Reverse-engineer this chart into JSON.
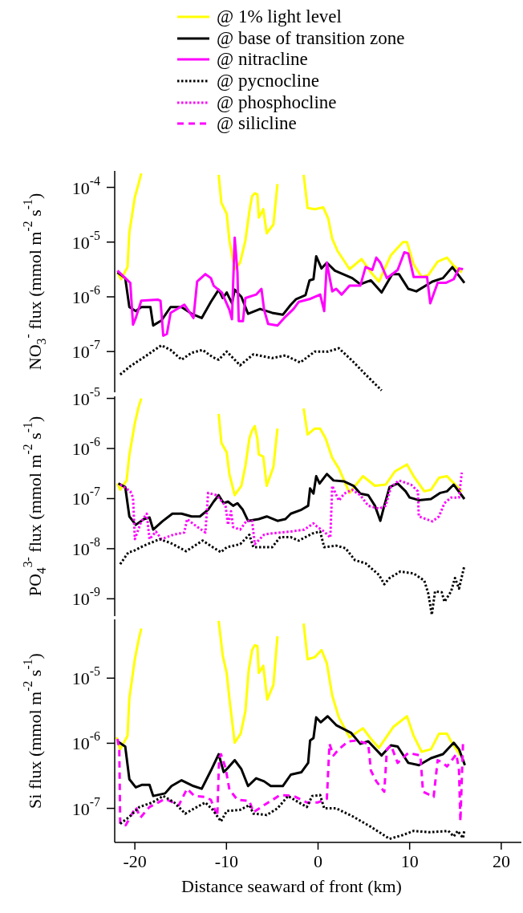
{
  "chart_data": [
    {
      "type": "line",
      "log": true,
      "legend": "top",
      "tick_labels": "y",
      "ylabel": "NO$_{3}$$^{-}$ flux (mmol m$^{-2}$ s$^{-1}$)",
      "xlim": [
        -22.2,
        22.2
      ],
      "ylim": [
        1.8e-08,
        0.0002
      ],
      "yticks": [
        {
          "value": 0.0001,
          "label": "10$^{-4}$"
        },
        {
          "value": 1e-05,
          "label": "10$^{-5}$"
        },
        {
          "value": 1e-06,
          "label": "10$^{-6}$"
        },
        {
          "value": 1e-07,
          "label": "10$^{-7}$"
        }
      ],
      "series": [
        {
          "name": "@ 1% light level",
          "color": "#ffff00",
          "line_style": "solid",
          "x": [
            -21.9,
            -21.5,
            -20.8,
            -20.6,
            -20.0,
            -19.6,
            -19.3,
            -15,
            -10.85,
            -10.55,
            -9.97,
            -9.68,
            -9.1,
            -8.51,
            -7.93,
            -7.49,
            -7.2,
            -6.91,
            -6.62,
            -6.47,
            -5.98,
            -5.6,
            -4.87,
            -4.43,
            -3,
            -1.57,
            -1.14,
            -0.35,
            0.58,
            1.11,
            1.55,
            2.13,
            3.44,
            4.75,
            5.77,
            6.65,
            7.96,
            9.27,
            9.71,
            10.44,
            11.31,
            12.04,
            13.06,
            14.08,
            14.81,
            15.69
          ],
          "values": [
            2.8e-06,
            2.1e-06,
            3.5e-06,
            1.5e-05,
            6.6e-05,
            0.000115,
            0.00018,
            null,
            0.00017,
            5.2e-05,
            3.3e-05,
            1.07e-05,
            3.2e-06,
            4.2e-06,
            1.07e-05,
            3.7e-05,
            6.9e-05,
            7.8e-05,
            7.4e-05,
            2.8e-05,
            4e-05,
            1.45e-05,
            2.1e-05,
            0.000115,
            null,
            0.00017,
            4.2e-05,
            4e-05,
            4.3e-05,
            2.7e-05,
            1.15e-05,
            6.9e-06,
            3.2e-06,
            4.9e-06,
            2.8e-06,
            1.9e-06,
            5.8e-06,
            1e-05,
            1e-05,
            3.9e-06,
            2.3e-06,
            2.5e-06,
            4.4e-06,
            5.2e-06,
            3.7e-06,
            2.8e-06
          ]
        },
        {
          "name": "@ base of transition zone",
          "color": "#000000",
          "line_style": "solid",
          "x": [
            -21.9,
            -21.05,
            -20.6,
            -19.9,
            -19.3,
            -18.3,
            -18.0,
            -17.1,
            -16.1,
            -14.9,
            -13.8,
            -12.7,
            -11.7,
            -10.85,
            -10.4,
            -9.97,
            -9.39,
            -9.1,
            -8.37,
            -7.64,
            -6.33,
            -5.01,
            -3.85,
            -2.97,
            -2.39,
            -1.37,
            -0.93,
            -0.5,
            -0.2,
            0.38,
            0.96,
            1.84,
            3.73,
            4.61,
            5.77,
            6.94,
            8.1,
            8.83,
            9.85,
            10.73,
            12.48,
            13.64,
            14.66,
            15.98
          ],
          "values": [
            2.8e-06,
            2.2e-06,
            6.5e-07,
            5.5e-07,
            6.5e-07,
            6.5e-07,
            3e-07,
            3.7e-07,
            6.5e-07,
            6.5e-07,
            4.9e-07,
            4.1e-07,
            8.1e-07,
            1.35e-06,
            9.5e-07,
            1.2e-06,
            7.6e-07,
            1.35e-06,
            1e-06,
            4.9e-07,
            6e-07,
            5.1e-07,
            4.7e-07,
            7.2e-07,
            9.1e-07,
            1.07e-06,
            2e-06,
            2.1e-06,
            5.5e-06,
            3.3e-06,
            4.2e-06,
            3e-06,
            2.2e-06,
            1.7e-06,
            2e-06,
            1.2e-06,
            2.6e-06,
            2.6e-06,
            1.4e-06,
            1.26e-06,
            1.9e-06,
            2.2e-06,
            3.5e-06,
            1.8e-06
          ]
        },
        {
          "name": "@ nitracline",
          "color": "#ff00ff",
          "line_style": "solid",
          "x": [
            -21.9,
            -20.5,
            -20.2,
            -19.9,
            -19.3,
            -17.5,
            -17.2,
            -16.9,
            -16.5,
            -16.1,
            -14.6,
            -13.6,
            -13.2,
            -12.3,
            -11.7,
            -11.4,
            -10.5,
            -9.68,
            -9.4,
            -9.1,
            -8.8,
            -8.66,
            -8.2,
            -7.93,
            -6.76,
            -6.18,
            -5.89,
            -5.45,
            -4.43,
            -3.7,
            -2.68,
            -2.1,
            -0.93,
            0.23,
            0.67,
            0.96,
            1.55,
            1.98,
            2.57,
            3.44,
            4.61,
            5.19,
            5.92,
            6.36,
            6.8,
            7.52,
            8.69,
            9.42,
            9.85,
            10.44,
            11.9,
            12.25,
            13.06,
            13.94,
            14.81,
            15.39,
            15.83
          ],
          "values": [
            3e-06,
            1.8e-06,
            3.1e-07,
            4.1e-07,
            8.5e-07,
            8.9e-07,
            8.5e-07,
            1.95e-07,
            2.1e-07,
            5.1e-07,
            7.2e-07,
            4.1e-07,
            1.9e-06,
            2.6e-06,
            2.2e-06,
            1.6e-06,
            1.2e-06,
            5.8e-07,
            3.9e-07,
            1.2e-05,
            2.8e-06,
            3.6e-07,
            3.6e-07,
            9.5e-07,
            1.1e-06,
            1.4e-06,
            5.8e-07,
            3.2e-07,
            3e-07,
            4.1e-07,
            6e-07,
            8.1e-07,
            9.1e-07,
            1.1e-06,
            5.5e-07,
            4.2e-06,
            1.26e-06,
            1.4e-06,
            1.1e-06,
            1.6e-06,
            1.6e-06,
            3.5e-06,
            3.1e-06,
            5.2e-06,
            4.2e-06,
            2.2e-06,
            3.1e-06,
            6.5e-06,
            6.2e-06,
            2.3e-06,
            2.3e-06,
            7.6e-07,
            1.8e-06,
            1.8e-06,
            2.1e-06,
            3.3e-06,
            3.2e-06
          ]
        },
        {
          "name": "@ pycnocline",
          "color": "#000000",
          "line_style": "dotted",
          "x": [
            -21.6,
            -20.5,
            -19.0,
            -17.1,
            -16.1,
            -14.9,
            -13.8,
            -12.6,
            -11.5,
            -10.85,
            -9.97,
            -8.51,
            -7.06,
            -5.01,
            -3.56,
            -1.95,
            -0.35,
            1.11,
            2.27,
            3.73,
            5.19,
            6.94
          ],
          "values": [
            3.8e-08,
            5.4e-08,
            7.9e-08,
            1.3e-07,
            1.07e-07,
            7.1e-08,
            9.5e-08,
            1.07e-07,
            7.9e-08,
            7.1e-08,
            1e-07,
            5.6e-08,
            8.9e-08,
            7.6e-08,
            8.5e-08,
            6.3e-08,
            1e-07,
            1e-07,
            1.15e-07,
            6.8e-08,
            3.8e-08,
            1.95e-08
          ]
        }
      ]
    },
    {
      "type": "line",
      "log": true,
      "legend": "top",
      "tick_labels": "y",
      "ylabel": "PO$_{4}$$^{3-}$ flux (mmol m$^{-2}$ s$^{-1}$)",
      "xlim": [
        -22.2,
        22.2
      ],
      "ylim": [
        4.5e-10,
        1.1e-05
      ],
      "yticks": [
        {
          "value": 1e-05,
          "label": "10$^{-5}$"
        },
        {
          "value": 1e-06,
          "label": "10$^{-6}$"
        },
        {
          "value": 1e-07,
          "label": "10$^{-7}$"
        },
        {
          "value": 1e-08,
          "label": "10$^{-8}$"
        },
        {
          "value": 1e-09,
          "label": "10$^{-9}$"
        }
      ],
      "series": [
        {
          "name": "@ 1% light level",
          "color": "#ffff00",
          "line_style": "solid",
          "x": [
            -21.9,
            -21.6,
            -20.9,
            -20.6,
            -20.0,
            -19.6,
            -19.3,
            -15,
            -10.85,
            -10.55,
            -9.97,
            -9.68,
            -9.1,
            -8.37,
            -7.93,
            -7.49,
            -7.2,
            -6.91,
            -6.62,
            -6.47,
            -5.98,
            -5.6,
            -4.87,
            -4.43,
            -3,
            -1.57,
            -1.14,
            -0.35,
            0.23,
            0.82,
            1.55,
            2.27,
            3.44,
            4.9,
            6.21,
            7.38,
            8.4,
            9.71,
            10.44,
            11.6,
            12.33,
            13.2,
            14.08,
            14.52,
            15.69
          ],
          "values": [
            2e-07,
            1.5e-07,
            2.3e-07,
            7.4e-07,
            3.2e-06,
            6.6e-06,
            1e-05,
            null,
            4.9e-06,
            1.3e-06,
            8.3e-07,
            3.1e-07,
            1.17e-07,
            1.8e-07,
            4.5e-07,
            1.6e-06,
            2.3e-06,
            2.8e-06,
            1.55e-06,
            7.6e-07,
            6.9e-07,
            1.8e-07,
            4.3e-07,
            2.5e-06,
            null,
            6.3e-06,
            1.9e-06,
            2.5e-06,
            2.5e-06,
            1.6e-06,
            6.5e-07,
            4e-07,
            1.3e-07,
            2.8e-07,
            1.8e-07,
            1.9e-07,
            3.5e-07,
            4.8e-07,
            2.8e-07,
            1.4e-07,
            1.5e-07,
            2.6e-07,
            2.8e-07,
            2.3e-07,
            1.4e-07
          ]
        },
        {
          "name": "@ base of transition zone",
          "color": "#000000",
          "line_style": "solid",
          "x": [
            -21.8,
            -21.05,
            -20.6,
            -19.9,
            -19.0,
            -18.4,
            -18.0,
            -17.0,
            -15.9,
            -14.9,
            -13.8,
            -12.9,
            -12.0,
            -11.4,
            -10.85,
            -10.3,
            -9.83,
            -9.27,
            -8.8,
            -8.22,
            -7.64,
            -6.47,
            -5.6,
            -4.43,
            -3.56,
            -2.97,
            -1.81,
            -1.08,
            -0.87,
            -0.5,
            -0.2,
            0.17,
            0.96,
            1.69,
            2.86,
            3.88,
            4.61,
            5.48,
            6.21,
            6.8,
            7.23,
            7.81,
            8.69,
            9.56,
            10.0,
            11.0,
            12.33,
            13.35,
            14.08,
            14.81,
            15.98
          ],
          "values": [
            2e-07,
            1.7e-07,
            4.4e-08,
            3e-08,
            3.9e-08,
            4.2e-08,
            2.4e-08,
            3.5e-08,
            5e-08,
            5e-08,
            4.4e-08,
            4.4e-08,
            6e-08,
            8.7e-08,
            1.17e-07,
            8.1e-08,
            8.7e-08,
            7.2e-08,
            8.1e-08,
            6e-08,
            3.6e-08,
            3.9e-08,
            4.4e-08,
            3.6e-08,
            3.9e-08,
            5e-08,
            6e-08,
            7.2e-08,
            1.6e-07,
            1.26e-07,
            2.8e-07,
            2e-07,
            3.1e-07,
            2.3e-07,
            2.2e-07,
            1.8e-07,
            1.26e-07,
            1.17e-07,
            7.2e-08,
            3.6e-08,
            7.2e-08,
            1.7e-07,
            2e-07,
            1.4e-07,
            1.05e-07,
            9.3e-08,
            9.8e-08,
            1.3e-07,
            1.4e-07,
            1.9e-07,
            9.8e-08
          ]
        },
        {
          "name": "@ phosphocline",
          "color": "#ff00ff",
          "line_style": "dotted",
          "x": [
            -21.6,
            -20.5,
            -20.2,
            -20.0,
            -19.3,
            -18.7,
            -18.4,
            -17.7,
            -17.1,
            -15.8,
            -14.6,
            -14.3,
            -13.5,
            -12.3,
            -12.0,
            -11.1,
            -10.1,
            -9.83,
            -9.5,
            -9.27,
            -8.5,
            -7.8,
            -7.2,
            -6.91,
            -5.89,
            -5.3,
            -2.97,
            -1.51,
            -0.5,
            -0.06,
            0.67,
            1.34,
            1.55,
            2.27,
            2.86,
            3.73,
            4.61,
            5.48,
            6.65,
            7.38,
            7.96,
            8.83,
            10.15,
            10.9,
            11.0,
            12.5,
            13.2,
            13.8,
            14.52,
            15.39,
            15.69
          ],
          "values": [
            1.9e-07,
            1.4e-07,
            1.05e-07,
            1.55e-08,
            3.5e-08,
            5e-08,
            1.55e-08,
            2.2e-08,
            1.55e-08,
            1.9e-08,
            2.1e-08,
            3.9e-08,
            3e-08,
            2.1e-08,
            1.3e-07,
            1.17e-07,
            7.2e-08,
            3e-08,
            5.6e-08,
            2.7e-08,
            2.4e-08,
            3.6e-08,
            3.6e-08,
            1.23e-08,
            1.9e-08,
            2e-08,
            2.2e-08,
            2.4e-08,
            3.2e-08,
            2.7e-08,
            2.2e-08,
            1.66e-08,
            1.8e-07,
            9.1e-08,
            1.26e-07,
            1.5e-07,
            1.17e-07,
            7.2e-08,
            6.3e-08,
            7.2e-08,
            1.7e-07,
            2.3e-07,
            1.9e-07,
            1.4e-07,
            4.4e-08,
            3.5e-08,
            4.4e-08,
            8.1e-08,
            1.05e-07,
            1.05e-07,
            3.3e-07
          ]
        },
        {
          "name": "@ pycnocline",
          "color": "#000000",
          "line_style": "dotted",
          "x": [
            -21.6,
            -20.7,
            -20.2,
            -19.0,
            -17.3,
            -16.1,
            -14.4,
            -12.6,
            -11.5,
            -10.6,
            -9.97,
            -8.5,
            -7.5,
            -7.06,
            -5.89,
            -5.01,
            -4.14,
            -2.97,
            -2.1,
            -0.64,
            0.23,
            0.67,
            1.98,
            3.0,
            4.03,
            5.19,
            6.65,
            7.23,
            7.81,
            8.98,
            10.44,
            11.6,
            12.04,
            12.42,
            12.77,
            13.5,
            13.8,
            14.52,
            14.95,
            15.39,
            15.98
          ],
          "values": [
            4.9e-09,
            8.5e-09,
            8.9e-09,
            1.15e-08,
            1.55e-08,
            1.3e-08,
            8.9e-09,
            1.45e-08,
            1.07e-08,
            8.5e-09,
            1.07e-08,
            1.23e-08,
            1.9e-08,
            1.07e-08,
            1.07e-08,
            1.07e-08,
            1.7e-08,
            1.7e-08,
            1.45e-08,
            2e-08,
            2.2e-08,
            1.07e-08,
            1.15e-08,
            1.02e-08,
            5.9e-09,
            5.1e-09,
            3e-09,
            1.95e-09,
            2.6e-09,
            3.5e-09,
            3.2e-09,
            2.3e-09,
            1.26e-09,
            4.8e-10,
            1.4e-09,
            1.35e-09,
            8.7e-10,
            1.4e-09,
            2.6e-09,
            1.6e-09,
            4.6e-09
          ]
        }
      ]
    },
    {
      "type": "line",
      "log": true,
      "legend": "top",
      "ylabel": "Si flux (mmol m$^{-2}$ s$^{-1}$)",
      "xlabel": "Distance seaward of front (km)",
      "xlim": [
        -22.2,
        22.2
      ],
      "xticks": [
        -20,
        -10,
        0,
        10,
        20
      ],
      "ylim": [
        3e-08,
        8e-05
      ],
      "yticks": [
        {
          "value": 1e-05,
          "label": "10$^{-5}$"
        },
        {
          "value": 1e-06,
          "label": "10$^{-6}$"
        },
        {
          "value": 1e-07,
          "label": "10$^{-7}$"
        }
      ],
      "series": [
        {
          "name": "@ 1% light level",
          "color": "#ffff00",
          "line_style": "solid",
          "x": [
            -22.0,
            -21.6,
            -20.8,
            -20.6,
            -20.0,
            -19.6,
            -19.3,
            -15,
            -10.85,
            -10.4,
            -9.97,
            -9.68,
            -9.1,
            -8.45,
            -7.93,
            -7.58,
            -7.2,
            -6.91,
            -6.62,
            -6.47,
            -5.98,
            -5.54,
            -4.87,
            -4.43,
            -3,
            -1.57,
            -1.14,
            -0.35,
            0.38,
            0.96,
            1.55,
            2.27,
            3.44,
            4.9,
            5.77,
            6.65,
            8.25,
            9.71,
            10.44,
            11.31,
            12.33,
            13.2,
            14.08,
            14.52,
            15.54
          ],
          "values": [
            1.23e-06,
            8.1e-07,
            1.3e-06,
            4.9e-06,
            1.95e-05,
            3.8e-05,
            5.8e-05,
            null,
            7.6e-05,
            2.2e-05,
            1.2e-05,
            4.9e-06,
            1.02e-06,
            1.4e-06,
            3.1e-06,
            1.3e-05,
            2.7e-05,
            3.2e-05,
            3.1e-05,
            1.2e-05,
            1.55e-05,
            4.7e-06,
            7.9e-06,
            4.4e-05,
            null,
            6.9e-05,
            1.95e-05,
            2.1e-05,
            2.7e-05,
            1.7e-05,
            5.4e-06,
            2.5e-06,
            1.23e-06,
            1.7e-06,
            1.17e-06,
            8.5e-07,
            1.8e-06,
            2.6e-06,
            1.3e-06,
            7.4e-07,
            8.1e-07,
            1.4e-06,
            1.4e-06,
            1.07e-06,
            6.5e-07
          ]
        },
        {
          "name": "@ base of transition zone",
          "color": "#000000",
          "line_style": "solid",
          "x": [
            -21.9,
            -21.05,
            -20.6,
            -19.9,
            -19.2,
            -18.4,
            -18.0,
            -16.7,
            -16.0,
            -14.9,
            -13.6,
            -12.7,
            -11.7,
            -10.85,
            -10.3,
            -9.83,
            -9.1,
            -8.37,
            -7.64,
            -6.76,
            -5.89,
            -5.16,
            -3.85,
            -2.97,
            -1.81,
            -1.08,
            -0.87,
            -0.5,
            -0.2,
            0.29,
            1.05,
            1.98,
            3.59,
            4.61,
            5.48,
            6.94,
            7.96,
            8.69,
            9.85,
            11.02,
            12.33,
            13.64,
            14.81,
            15.39,
            16.03
          ],
          "values": [
            1.07e-06,
            8.9e-07,
            2.8e-07,
            2.1e-07,
            2.3e-07,
            2.3e-07,
            1.55e-07,
            1.7e-07,
            2.2e-07,
            2.7e-07,
            2.2e-07,
            2e-07,
            3.8e-07,
            6.8e-07,
            3.6e-07,
            4.2e-07,
            5.5e-07,
            4e-07,
            2.2e-07,
            2.9e-07,
            2.6e-07,
            2.2e-07,
            2.2e-07,
            3.3e-07,
            3.6e-07,
            5e-07,
            1.1e-06,
            1.2e-06,
            2.5e-06,
            2.1e-06,
            2.6e-06,
            1.9e-06,
            1.45e-06,
            9.8e-07,
            1.07e-06,
            6.5e-07,
            9.3e-07,
            8.9e-07,
            5e-07,
            4.6e-07,
            5.9e-07,
            6.8e-07,
            1.02e-06,
            8.1e-07,
            4.6e-07
          ]
        },
        {
          "name": "@ silicline",
          "color": "#ff00ff",
          "line_style": "dashed",
          "x": [
            -21.9,
            -21.7,
            -21.6,
            -21.0,
            -19.9,
            -19.4,
            -18.4,
            -16.7,
            -15.2,
            -14.3,
            -13.5,
            -12.3,
            -11.7,
            -11.0,
            -10.8,
            -10.6,
            -10.1,
            -9.68,
            -8.8,
            -7.5,
            -7.06,
            -5.89,
            -4.14,
            -2.68,
            -1.22,
            -0.06,
            0.96,
            1.25,
            1.69,
            2.27,
            3.3,
            4.17,
            5.48,
            5.77,
            6.36,
            7.23,
            7.52,
            7.96,
            8.69,
            9.85,
            11.17,
            11.46,
            12.62,
            13.06,
            13.64,
            14.08,
            15.1,
            15.39,
            15.54,
            15.83
          ],
          "values": [
            1.17e-06,
            8.1e-07,
            5.8e-08,
            5.5e-08,
            1.05e-07,
            7.2e-08,
            1.05e-07,
            1.4e-07,
            1.12e-07,
            2e-07,
            1.55e-07,
            1.5e-07,
            1.35e-07,
            7.6e-08,
            5.9e-07,
            6.8e-07,
            4.2e-07,
            1.95e-07,
            1.35e-07,
            1.3e-07,
            8.7e-08,
            1.12e-07,
            1.6e-07,
            1.55e-07,
            1.23e-07,
            1.23e-07,
            1.4e-07,
            9.8e-07,
            6.5e-07,
            8.1e-07,
            1.07e-06,
            1.1e-06,
            9.8e-07,
            3.8e-07,
            2.6e-07,
            1.8e-07,
            8.1e-07,
            9.3e-07,
            5e-07,
            7.1e-07,
            6.5e-07,
            1.8e-07,
            1.5e-07,
            5.5e-07,
            5e-07,
            4.4e-07,
            6.8e-07,
            3.8e-07,
            6.3e-08,
            1.07e-06
          ]
        },
        {
          "name": "@ pycnocline",
          "color": "#000000",
          "line_style": "dotted",
          "x": [
            -21.6,
            -20.7,
            -19.5,
            -18.1,
            -16.9,
            -15.7,
            -14.5,
            -13.5,
            -12.3,
            -11.5,
            -10.6,
            -9.97,
            -8.5,
            -7.5,
            -7.06,
            -5.6,
            -4.43,
            -3.27,
            -2.1,
            -1.22,
            -0.64,
            0.23,
            0.67,
            1.98,
            3.73,
            5.77,
            7.81,
            9.27,
            10.44,
            12.19,
            14.23,
            14.81,
            15.25,
            15.83,
            15.98
          ],
          "values": [
            5.8e-08,
            7.2e-08,
            1.05e-07,
            1.23e-07,
            1.55e-07,
            1.23e-07,
            8.3e-08,
            1e-07,
            1.23e-07,
            9.5e-08,
            6.3e-08,
            9.1e-08,
            9.5e-08,
            1.12e-07,
            8.3e-08,
            7.9e-08,
            1e-07,
            1.55e-07,
            1.23e-07,
            1.05e-07,
            1.55e-07,
            1.6e-07,
            1e-07,
            1e-07,
            7.6e-08,
            5.2e-08,
            3.4e-08,
            3.9e-08,
            4.5e-08,
            4.3e-08,
            4.5e-08,
            3.7e-08,
            4.5e-08,
            3.5e-08,
            4.7e-08
          ]
        }
      ]
    }
  ]
}
